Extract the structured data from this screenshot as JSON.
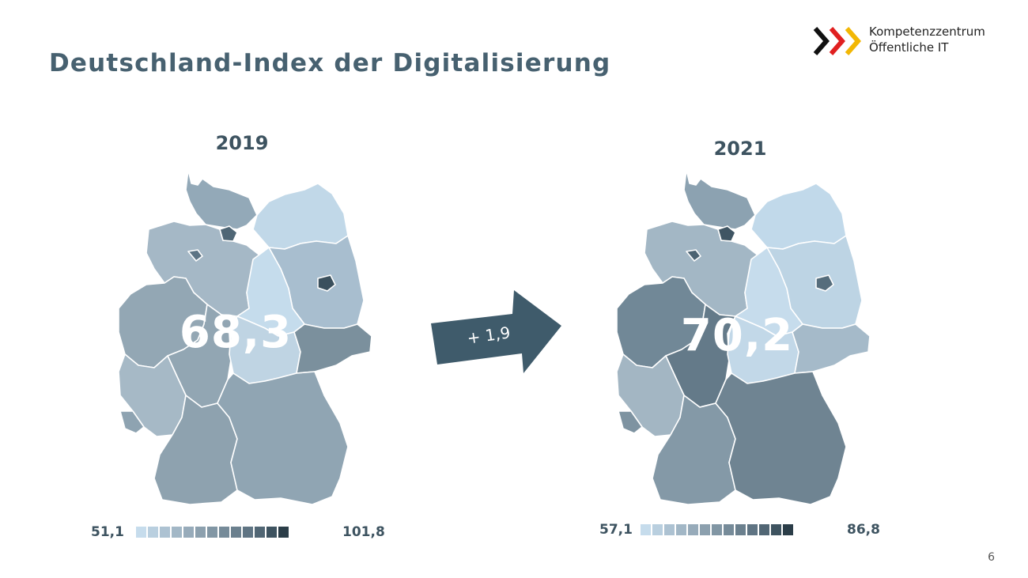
{
  "title": "Deutschland-Index der Digitalisierung",
  "logo": {
    "line1": "Kompetenzzentrum",
    "line2": "Öffentliche IT",
    "chevron_colors": [
      "#111111",
      "#e02020",
      "#f2b705"
    ]
  },
  "map_left": {
    "year": "2019",
    "index": "68,3",
    "legend": {
      "min": "51,1",
      "max": "101,8"
    },
    "colors": {
      "SH": "#93a9b8",
      "HH": "#4f6675",
      "MV": "#c1d8e8",
      "NI": "#a5b8c6",
      "HB": "#5d7484",
      "BB": "#a8becf",
      "BE": "#3b505d",
      "ST": "#c5dcec",
      "SN": "#7b909d",
      "TH": "#bfd4e3",
      "NW": "#93a7b4",
      "HE": "#92a6b3",
      "RP": "#a6b9c6",
      "SL": "#8ea3b1",
      "BW": "#8ea2af",
      "BY": "#90a5b3"
    }
  },
  "map_right": {
    "year": "2021",
    "index": "70,2",
    "legend": {
      "min": "57,1",
      "max": "86,8"
    },
    "colors": {
      "SH": "#8ca2b1",
      "HH": "#3f5563",
      "MV": "#c1d9ea",
      "NI": "#a3b7c5",
      "HB": "#4c6372",
      "BB": "#bdd4e4",
      "BE": "#566d7c",
      "ST": "#c6dcec",
      "SN": "#a5bac9",
      "TH": "#c2d8e8",
      "NW": "#718897",
      "HE": "#647a89",
      "RP": "#a3b6c3",
      "SL": "#7e93a1",
      "BW": "#8499a7",
      "BY": "#6f8492"
    }
  },
  "legend_scale": [
    "#c6dcec",
    "#b9cfdf",
    "#adc2d2",
    "#a2b7c6",
    "#97abba",
    "#8ca0ae",
    "#8196a4",
    "#768b99",
    "#6b808e",
    "#5f7483",
    "#516674",
    "#3e5360",
    "#2b3d48"
  ],
  "change_label": "+ 1,9",
  "arrow_color": "#3f5b6b",
  "page_number": "6"
}
